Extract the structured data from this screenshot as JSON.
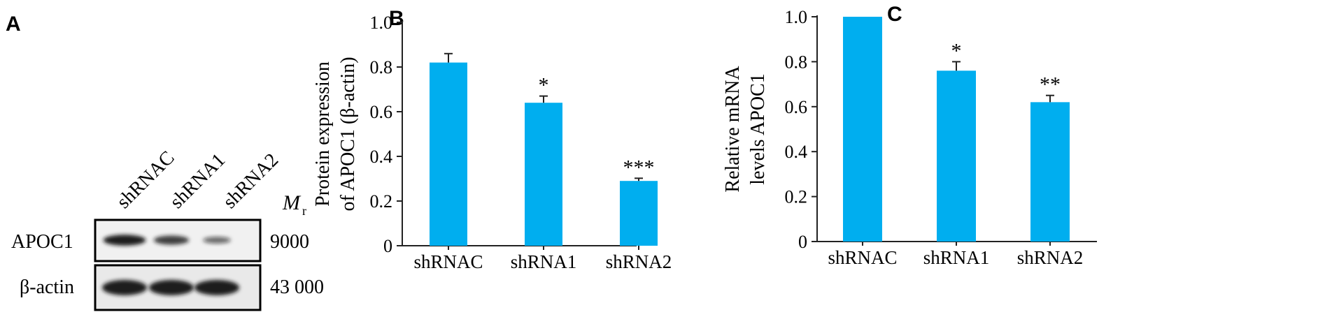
{
  "panels": {
    "a": {
      "letter": "A",
      "lanes": [
        "shRNAC",
        "shRNA1",
        "shRNA2"
      ],
      "mr_symbol": "M",
      "mr_subscript": "r",
      "rows": [
        {
          "label": "APOC1",
          "mr": "9000",
          "intensity": [
            0.95,
            0.7,
            0.35
          ]
        },
        {
          "label": "β-actin",
          "mr": "43 000",
          "intensity": [
            0.95,
            0.95,
            0.95
          ]
        }
      ]
    },
    "b": {
      "letter": "B"
    },
    "c": {
      "letter": "C"
    }
  },
  "colors": {
    "bar": "#00aeef",
    "axis": "#222222",
    "band": "#151515"
  },
  "chart_data": [
    {
      "type": "bar",
      "categories": [
        "shRNAC",
        "shRNA1",
        "shRNA2"
      ],
      "values": [
        0.82,
        0.64,
        0.29
      ],
      "errors": [
        0.04,
        0.03,
        0.012
      ],
      "annotations": [
        "",
        "*",
        "***"
      ],
      "ylabel": [
        "Protein expression",
        "of APOC1 (β-actin)"
      ],
      "ylim": [
        0,
        1.0
      ],
      "yticks": [
        "0",
        "0.2",
        "0.4",
        "0.6",
        "0.8",
        "1.0"
      ]
    },
    {
      "type": "bar",
      "categories": [
        "shRNAC",
        "shRNA1",
        "shRNA2"
      ],
      "values": [
        1.0,
        0.76,
        0.62
      ],
      "errors": [
        0,
        0.04,
        0.03
      ],
      "annotations": [
        "",
        "*",
        "**"
      ],
      "ylabel": [
        "Relative mRNA",
        "levels APOC1"
      ],
      "ylim": [
        0,
        1.0
      ],
      "yticks": [
        "0",
        "0.2",
        "0.4",
        "0.6",
        "0.8",
        "1.0"
      ]
    }
  ]
}
